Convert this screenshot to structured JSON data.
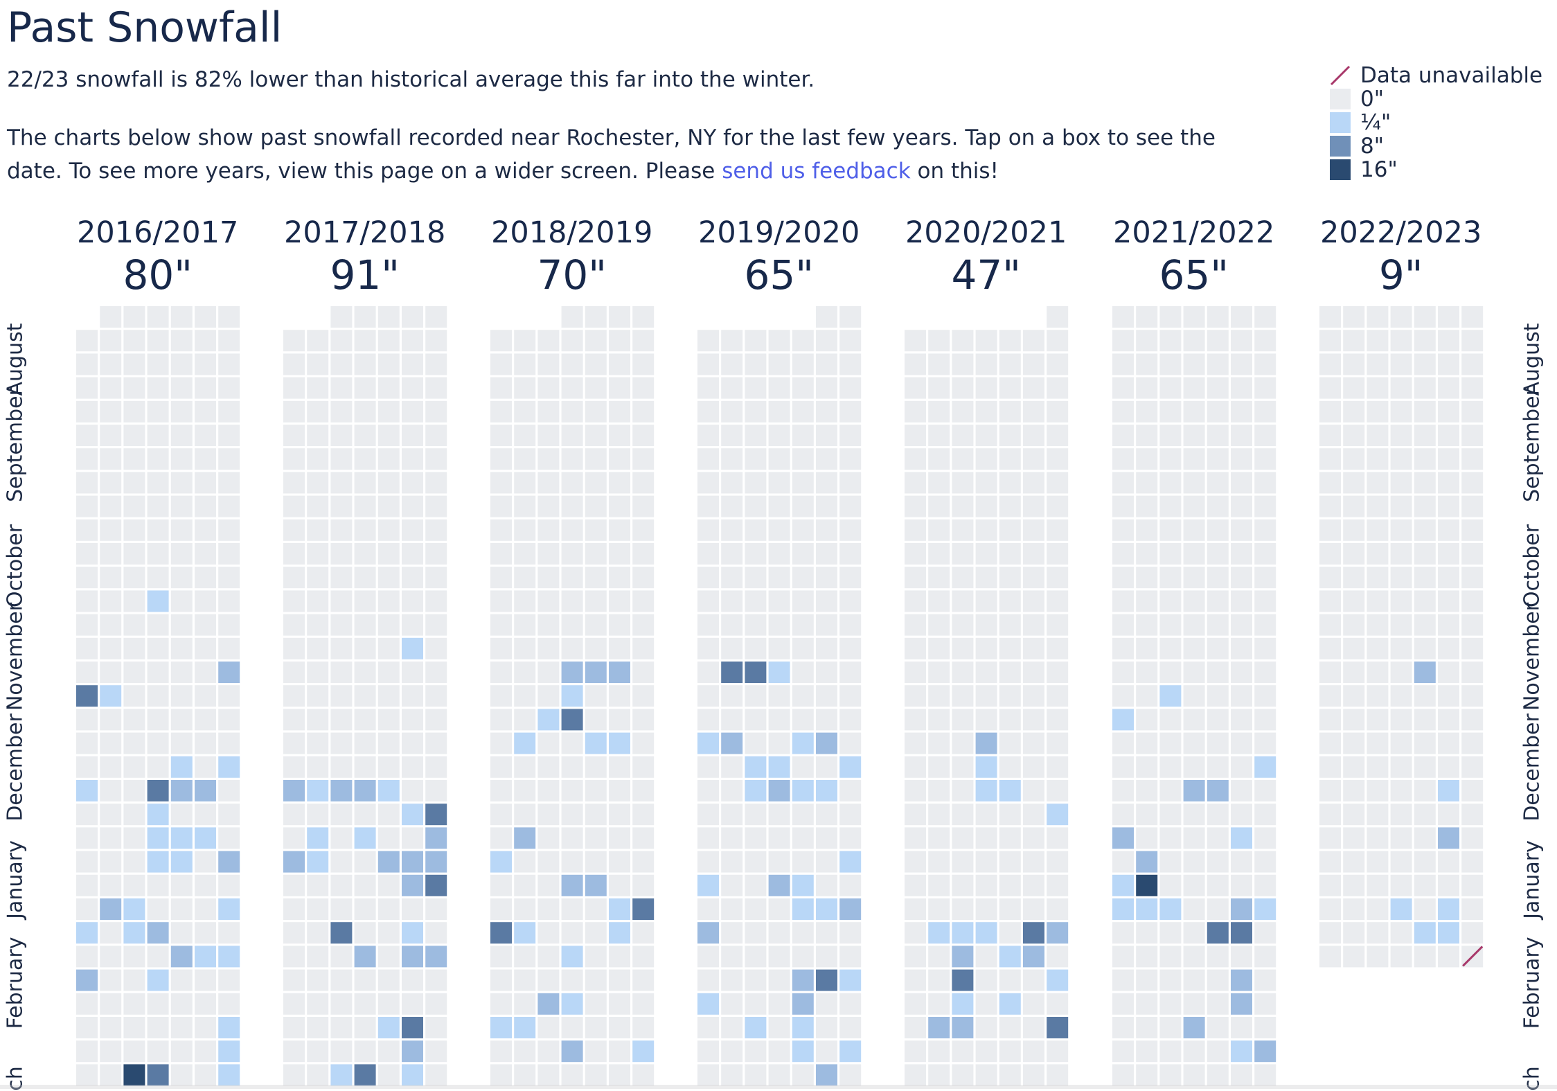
{
  "page": {
    "title": "Past Snowfall",
    "summary": "22/23 snowfall is 82% lower than historical average this far into the winter.",
    "intro_before_link": "The charts below show past snowfall recorded near Rochester, NY for the last few years. Tap on a box to see the date. To see more years, view this page on a wider screen. Please ",
    "feedback_link": "send us feedback",
    "intro_after_link": " on this!"
  },
  "legend": [
    {
      "label": "Data unavailable",
      "type": "unavailable",
      "color": "#a8386a"
    },
    {
      "label": "0\"",
      "type": "swatch",
      "color": "#eaecef"
    },
    {
      "label": "¼\"",
      "type": "swatch",
      "color": "#b9d7f7"
    },
    {
      "label": "8\"",
      "type": "swatch",
      "color": "#7090b8"
    },
    {
      "label": "16\"",
      "type": "swatch",
      "color": "#2a4a70"
    }
  ],
  "months": [
    "August",
    "September",
    "October",
    "November",
    "December",
    "January",
    "February",
    "March"
  ],
  "month_label_text": [
    "August",
    "September",
    "October",
    "November",
    "December",
    "January",
    "February",
    "ch"
  ],
  "colors": {
    "empty": "#eaecef",
    "light": "#b9d7f7",
    "medium_light": "#9dbbe0",
    "medium": "#7f9ec6",
    "dark": "#5a7aa3",
    "darkest": "#2a4a70",
    "unavailable": "#a8386a",
    "text": "#17284a",
    "link": "#4f5fe8"
  },
  "chart_data": {
    "type": "heatmap",
    "title": "Past Snowfall",
    "location": "Rochester, NY",
    "value_scale": [
      "0\"",
      "¼\"",
      "8\"",
      "16\""
    ],
    "level_note": "cell levels: 0 = 0\", 1-2 = ¼\"+, 3 = 8\"+, 4 = 16\"",
    "seasons": [
      {
        "label": "2016/2017",
        "total": "80\"",
        "cells": [
          [
            12,
            3,
            1
          ],
          [
            15,
            6,
            2
          ],
          [
            16,
            0,
            3
          ],
          [
            16,
            1,
            1
          ],
          [
            19,
            4,
            1
          ],
          [
            19,
            6,
            1
          ],
          [
            20,
            0,
            1
          ],
          [
            20,
            3,
            3
          ],
          [
            20,
            4,
            2
          ],
          [
            20,
            5,
            2
          ],
          [
            21,
            3,
            1
          ],
          [
            22,
            3,
            1
          ],
          [
            22,
            4,
            1
          ],
          [
            22,
            5,
            1
          ],
          [
            23,
            3,
            1
          ],
          [
            23,
            4,
            1
          ],
          [
            23,
            6,
            2
          ],
          [
            25,
            1,
            2
          ],
          [
            25,
            2,
            1
          ],
          [
            25,
            6,
            1
          ],
          [
            26,
            0,
            1
          ],
          [
            26,
            2,
            1
          ],
          [
            26,
            3,
            2
          ],
          [
            27,
            4,
            2
          ],
          [
            27,
            5,
            1
          ],
          [
            27,
            6,
            1
          ],
          [
            28,
            0,
            2
          ],
          [
            28,
            3,
            1
          ],
          [
            30,
            6,
            1
          ],
          [
            31,
            6,
            1
          ],
          [
            32,
            2,
            4
          ],
          [
            32,
            3,
            3
          ],
          [
            32,
            6,
            1
          ]
        ]
      },
      {
        "label": "2017/2018",
        "total": "91\"",
        "cells": [
          [
            14,
            5,
            1
          ],
          [
            20,
            0,
            2
          ],
          [
            20,
            1,
            1
          ],
          [
            20,
            2,
            2
          ],
          [
            20,
            3,
            2
          ],
          [
            20,
            4,
            1
          ],
          [
            21,
            5,
            1
          ],
          [
            21,
            6,
            3
          ],
          [
            22,
            1,
            1
          ],
          [
            22,
            3,
            1
          ],
          [
            22,
            6,
            2
          ],
          [
            23,
            0,
            2
          ],
          [
            23,
            1,
            1
          ],
          [
            23,
            4,
            2
          ],
          [
            23,
            5,
            2
          ],
          [
            23,
            6,
            2
          ],
          [
            24,
            5,
            2
          ],
          [
            24,
            6,
            3
          ],
          [
            26,
            2,
            3
          ],
          [
            26,
            5,
            1
          ],
          [
            27,
            3,
            2
          ],
          [
            27,
            5,
            2
          ],
          [
            27,
            6,
            2
          ],
          [
            30,
            4,
            1
          ],
          [
            30,
            5,
            3
          ],
          [
            31,
            5,
            2
          ],
          [
            32,
            2,
            1
          ],
          [
            32,
            3,
            3
          ],
          [
            32,
            5,
            1
          ]
        ]
      },
      {
        "label": "2018/2019",
        "total": "70\"",
        "cells": [
          [
            15,
            3,
            2
          ],
          [
            15,
            4,
            2
          ],
          [
            15,
            5,
            2
          ],
          [
            16,
            3,
            1
          ],
          [
            17,
            2,
            1
          ],
          [
            17,
            3,
            3
          ],
          [
            18,
            1,
            1
          ],
          [
            18,
            4,
            1
          ],
          [
            18,
            5,
            1
          ],
          [
            22,
            1,
            2
          ],
          [
            23,
            0,
            1
          ],
          [
            24,
            3,
            2
          ],
          [
            24,
            4,
            2
          ],
          [
            25,
            5,
            1
          ],
          [
            25,
            6,
            3
          ],
          [
            26,
            0,
            3
          ],
          [
            26,
            1,
            1
          ],
          [
            26,
            5,
            1
          ],
          [
            27,
            3,
            1
          ],
          [
            29,
            2,
            2
          ],
          [
            29,
            3,
            1
          ],
          [
            30,
            0,
            1
          ],
          [
            30,
            1,
            1
          ],
          [
            31,
            3,
            2
          ],
          [
            31,
            6,
            1
          ]
        ]
      },
      {
        "label": "2019/2020",
        "total": "65\"",
        "cells": [
          [
            15,
            1,
            3
          ],
          [
            15,
            2,
            3
          ],
          [
            15,
            3,
            1
          ],
          [
            18,
            0,
            1
          ],
          [
            18,
            1,
            2
          ],
          [
            18,
            4,
            1
          ],
          [
            18,
            5,
            2
          ],
          [
            19,
            2,
            1
          ],
          [
            19,
            3,
            1
          ],
          [
            19,
            6,
            1
          ],
          [
            20,
            2,
            1
          ],
          [
            20,
            3,
            2
          ],
          [
            20,
            4,
            1
          ],
          [
            20,
            5,
            1
          ],
          [
            23,
            6,
            1
          ],
          [
            24,
            0,
            1
          ],
          [
            24,
            3,
            2
          ],
          [
            24,
            4,
            1
          ],
          [
            25,
            4,
            1
          ],
          [
            25,
            5,
            1
          ],
          [
            25,
            6,
            2
          ],
          [
            26,
            0,
            2
          ],
          [
            28,
            4,
            2
          ],
          [
            28,
            5,
            3
          ],
          [
            28,
            6,
            1
          ],
          [
            29,
            0,
            1
          ],
          [
            29,
            4,
            2
          ],
          [
            30,
            2,
            1
          ],
          [
            30,
            4,
            1
          ],
          [
            31,
            4,
            1
          ],
          [
            31,
            6,
            1
          ],
          [
            32,
            5,
            2
          ]
        ]
      },
      {
        "label": "2020/2021",
        "total": "47\"",
        "cells": [
          [
            18,
            3,
            2
          ],
          [
            19,
            3,
            1
          ],
          [
            20,
            3,
            1
          ],
          [
            20,
            4,
            1
          ],
          [
            21,
            6,
            1
          ],
          [
            26,
            1,
            1
          ],
          [
            26,
            2,
            1
          ],
          [
            26,
            3,
            1
          ],
          [
            26,
            5,
            3
          ],
          [
            26,
            6,
            2
          ],
          [
            27,
            2,
            2
          ],
          [
            27,
            4,
            1
          ],
          [
            27,
            5,
            2
          ],
          [
            28,
            2,
            3
          ],
          [
            28,
            6,
            1
          ],
          [
            29,
            2,
            1
          ],
          [
            29,
            4,
            1
          ],
          [
            30,
            1,
            2
          ],
          [
            30,
            2,
            2
          ],
          [
            30,
            6,
            3
          ]
        ]
      },
      {
        "label": "2021/2022",
        "total": "65\"",
        "cells": [
          [
            16,
            2,
            1
          ],
          [
            17,
            0,
            1
          ],
          [
            19,
            6,
            1
          ],
          [
            20,
            3,
            2
          ],
          [
            20,
            4,
            2
          ],
          [
            22,
            0,
            2
          ],
          [
            22,
            5,
            1
          ],
          [
            23,
            1,
            2
          ],
          [
            24,
            0,
            1
          ],
          [
            24,
            1,
            4
          ],
          [
            25,
            0,
            1
          ],
          [
            25,
            1,
            1
          ],
          [
            25,
            2,
            1
          ],
          [
            25,
            5,
            2
          ],
          [
            25,
            6,
            1
          ],
          [
            26,
            4,
            3
          ],
          [
            26,
            5,
            3
          ],
          [
            28,
            5,
            2
          ],
          [
            29,
            5,
            2
          ],
          [
            30,
            3,
            2
          ],
          [
            31,
            5,
            1
          ],
          [
            31,
            6,
            2
          ]
        ]
      },
      {
        "label": "2022/2023",
        "total": "9\"",
        "cells": [
          [
            15,
            4,
            2
          ],
          [
            20,
            5,
            1
          ],
          [
            22,
            5,
            2
          ],
          [
            25,
            3,
            1
          ],
          [
            25,
            5,
            1
          ],
          [
            26,
            4,
            1
          ],
          [
            26,
            5,
            1
          ]
        ],
        "rows_available": 28,
        "unavailable_cells": [
          [
            27,
            6
          ]
        ]
      }
    ]
  }
}
